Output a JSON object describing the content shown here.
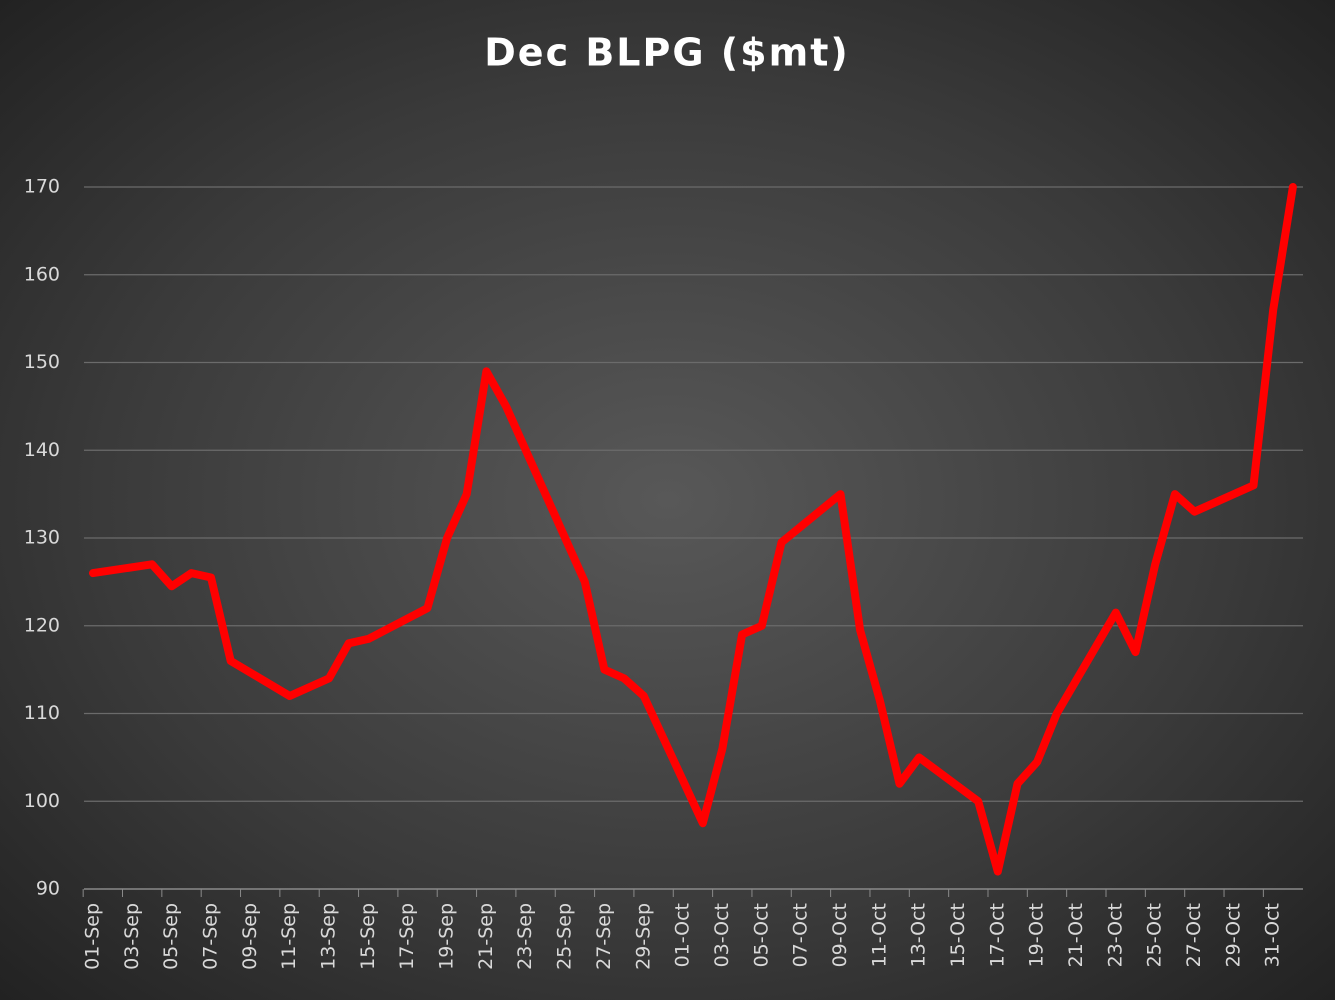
{
  "chart_data": {
    "type": "line",
    "title": "Dec BLPG ($mt)",
    "x": [
      "01-Sep",
      "04-Sep",
      "05-Sep",
      "06-Sep",
      "07-Sep",
      "08-Sep",
      "11-Sep",
      "13-Sep",
      "14-Sep",
      "15-Sep",
      "18-Sep",
      "19-Sep",
      "20-Sep",
      "21-Sep",
      "22-Sep",
      "26-Sep",
      "27-Sep",
      "28-Sep",
      "29-Sep",
      "02-Oct",
      "03-Oct",
      "04-Oct",
      "05-Oct",
      "06-Oct",
      "09-Oct",
      "10-Oct",
      "11-Oct",
      "12-Oct",
      "13-Oct",
      "16-Oct",
      "17-Oct",
      "18-Oct",
      "19-Oct",
      "20-Oct",
      "23-Oct",
      "24-Oct",
      "25-Oct",
      "26-Oct",
      "27-Oct",
      "30-Oct",
      "31-Oct",
      "01-Nov"
    ],
    "series": [
      {
        "name": "Dec BLPG",
        "color": "#ff0000",
        "values": [
          126,
          127,
          124.5,
          126,
          125.5,
          116,
          112,
          114,
          118,
          118.5,
          122,
          130,
          135,
          149,
          145,
          125,
          115,
          114,
          112,
          97.5,
          106,
          119,
          120,
          129.5,
          135,
          119.5,
          111.5,
          102,
          105,
          100,
          92,
          102,
          104.5,
          110,
          121.5,
          117,
          127,
          135,
          133,
          136,
          156,
          170
        ]
      }
    ],
    "xticks": [
      "01-Sep",
      "03-Sep",
      "05-Sep",
      "07-Sep",
      "09-Sep",
      "11-Sep",
      "13-Sep",
      "15-Sep",
      "17-Sep",
      "19-Sep",
      "21-Sep",
      "23-Sep",
      "25-Sep",
      "27-Sep",
      "29-Sep",
      "01-Oct",
      "03-Oct",
      "05-Oct",
      "07-Oct",
      "09-Oct",
      "11-Oct",
      "13-Oct",
      "15-Oct",
      "17-Oct",
      "19-Oct",
      "21-Oct",
      "23-Oct",
      "25-Oct",
      "27-Oct",
      "29-Oct",
      "31-Oct"
    ],
    "ylim": [
      90,
      170
    ],
    "yticks": [
      90,
      100,
      110,
      120,
      130,
      140,
      150,
      160,
      170
    ],
    "grid": true
  }
}
